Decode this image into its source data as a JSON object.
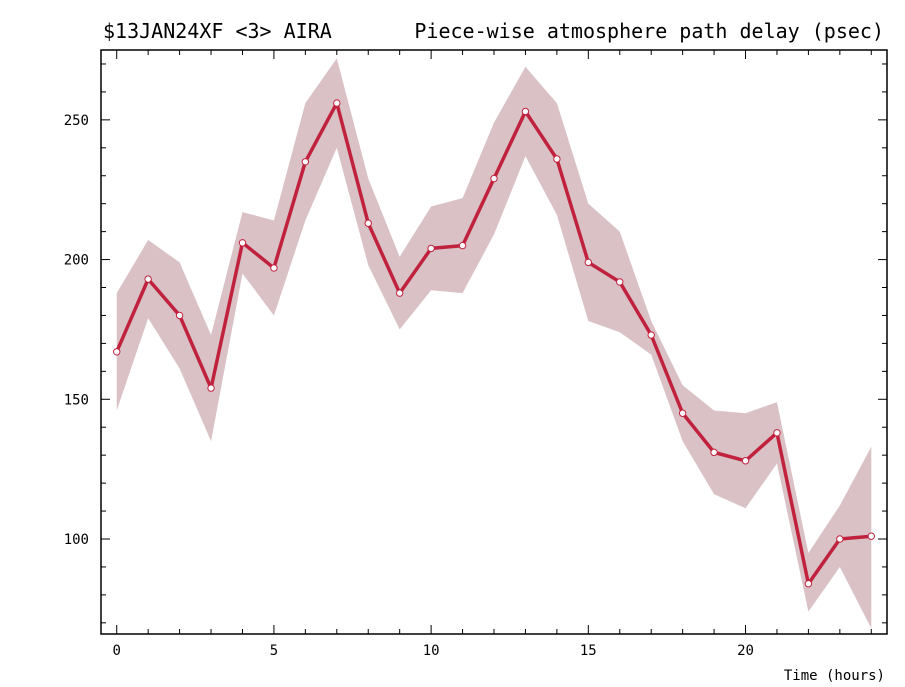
{
  "title": {
    "left": "$13JAN24XF <3>  AIRA",
    "right": "Piece-wise atmosphere path delay (psec)"
  },
  "colors": {
    "line": "#c0223e",
    "band": "#d9c1c6",
    "marker_fill": "#ffffff",
    "axis": "#000000"
  },
  "chart_data": {
    "type": "line",
    "title": "Piece-wise atmosphere path delay (psec)",
    "xlabel": "Time (hours)",
    "ylabel": "",
    "xlim": [
      -0.5,
      24.5
    ],
    "ylim": [
      66,
      275
    ],
    "xticks": [
      0,
      5,
      10,
      15,
      20
    ],
    "yticks": [
      100,
      150,
      200,
      250
    ],
    "grid": false,
    "series": [
      {
        "x": [
          0,
          1,
          2,
          3,
          4,
          5,
          6,
          7,
          8,
          9,
          10,
          11,
          12,
          13,
          14,
          15,
          16,
          17,
          18,
          19,
          20,
          21,
          22,
          23,
          24
        ],
        "values": [
          167,
          193,
          180,
          154,
          206,
          197,
          235,
          256,
          213,
          188,
          204,
          205,
          229,
          253,
          236,
          199,
          192,
          173,
          145,
          131,
          128,
          138,
          84,
          100,
          101
        ],
        "upper": [
          188,
          207,
          199,
          173,
          217,
          214,
          256,
          272,
          229,
          201,
          219,
          222,
          249,
          269,
          256,
          220,
          210,
          178,
          155,
          146,
          145,
          149,
          95,
          112,
          133
        ],
        "lower": [
          146,
          179,
          161,
          135,
          195,
          180,
          214,
          240,
          198,
          175,
          189,
          188,
          209,
          237,
          216,
          178,
          174,
          166,
          135,
          116,
          111,
          127,
          74,
          90,
          68
        ]
      }
    ]
  }
}
